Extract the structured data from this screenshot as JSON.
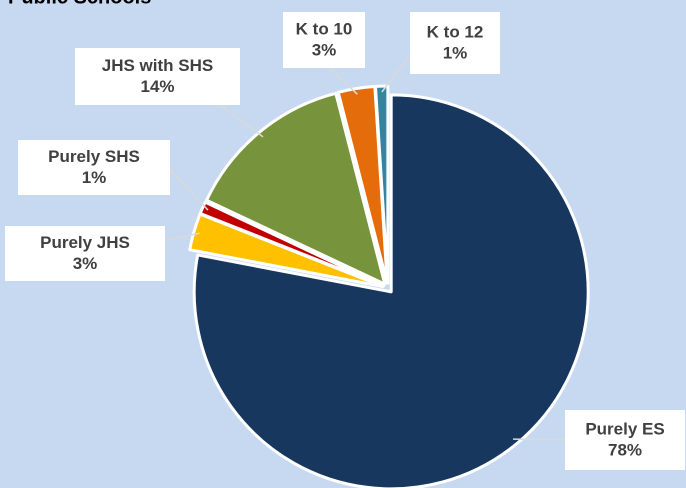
{
  "chart_data": {
    "type": "pie",
    "title": "Public Schools",
    "categories": [
      "Purely ES",
      "Purely JHS",
      "Purely SHS",
      "JHS with SHS",
      "K to 10",
      "K to 12"
    ],
    "values": [
      78,
      3,
      1,
      14,
      3,
      1
    ],
    "value_labels": [
      "78%",
      "3%",
      "1%",
      "14%",
      "3%",
      "1%"
    ],
    "colors": [
      "#17375e",
      "#ffc000",
      "#c00000",
      "#77933c",
      "#e46c0a",
      "#31859c"
    ]
  }
}
